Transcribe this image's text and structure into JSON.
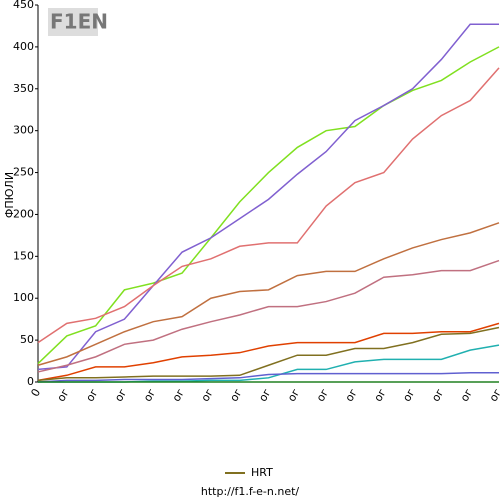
{
  "chart_data": {
    "type": "line",
    "logo": "F1EN",
    "y_label": "ФПЮЛИ",
    "footer": "http://f1.f-e-n.net/",
    "categories": [
      "0",
      "ог",
      "ог",
      "ог",
      "ог",
      "ог",
      "ог",
      "ог",
      "ог",
      "ог",
      "ог",
      "ог",
      "ог",
      "ог",
      "ог",
      "ог",
      "ог"
    ],
    "ylim": [
      0,
      450
    ],
    "yticks": [
      0,
      50,
      100,
      150,
      200,
      250,
      300,
      350,
      400,
      450
    ],
    "legend": "bottom",
    "series": [
      {
        "color": "#80e020",
        "values": [
          22,
          55,
          67,
          110,
          118,
          130,
          172,
          215,
          250,
          280,
          300,
          305,
          330,
          348,
          360,
          382,
          400
        ]
      },
      {
        "color": "#8060d0",
        "values": [
          15,
          18,
          60,
          75,
          115,
          155,
          172,
          195,
          218,
          248,
          275,
          312,
          330,
          350,
          385,
          427,
          427
        ]
      },
      {
        "color": "#e07070",
        "values": [
          47,
          70,
          76,
          90,
          115,
          138,
          147,
          162,
          166,
          166,
          210,
          238,
          250,
          290,
          318,
          336,
          375
        ]
      },
      {
        "color": "#c07040",
        "values": [
          20,
          30,
          45,
          60,
          72,
          78,
          100,
          108,
          110,
          127,
          132,
          132,
          147,
          160,
          170,
          178,
          190
        ]
      },
      {
        "color": "#c07080",
        "values": [
          12,
          20,
          30,
          45,
          50,
          63,
          72,
          80,
          90,
          90,
          96,
          106,
          125,
          128,
          133,
          133,
          145
        ]
      },
      {
        "color": "#e04000",
        "values": [
          2,
          8,
          18,
          18,
          23,
          30,
          32,
          35,
          43,
          47,
          47,
          47,
          58,
          58,
          60,
          60,
          70
        ]
      },
      {
        "name": "HRT",
        "color": "#807020",
        "values": [
          2,
          5,
          5,
          6,
          7,
          7,
          7,
          8,
          20,
          32,
          32,
          40,
          40,
          47,
          57,
          58,
          65
        ]
      },
      {
        "color": "#20b0b0",
        "values": [
          0,
          0,
          0,
          0,
          1,
          1,
          2,
          2,
          5,
          15,
          15,
          24,
          27,
          27,
          27,
          38,
          44
        ]
      },
      {
        "color": "#6060d0",
        "values": [
          0,
          2,
          2,
          3,
          3,
          3,
          4,
          5,
          9,
          10,
          10,
          10,
          10,
          10,
          10,
          11,
          11
        ]
      },
      {
        "color": "#208020",
        "values": [
          0,
          0,
          0,
          0,
          0,
          0,
          0,
          0,
          0,
          0,
          0,
          0,
          0,
          0,
          0,
          0,
          0
        ]
      }
    ]
  }
}
